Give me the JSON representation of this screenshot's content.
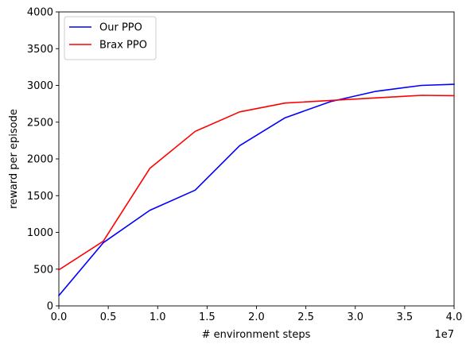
{
  "chart_data": {
    "type": "line",
    "xlabel": "# environment steps",
    "ylabel": "reward per episode",
    "x_offset_label": "1e7",
    "xlim": [
      0,
      4
    ],
    "ylim": [
      0,
      4000
    ],
    "x_ticks": [
      "0.0",
      "0.5",
      "1.0",
      "1.5",
      "2.0",
      "2.5",
      "3.0",
      "3.5",
      "4.0"
    ],
    "y_ticks": [
      "0",
      "500",
      "1000",
      "1500",
      "2000",
      "2500",
      "3000",
      "3500",
      "4000"
    ],
    "legend_position": "top-left",
    "grid": false,
    "series": [
      {
        "name": "Our PPO",
        "color": "#0000ff",
        "x": [
          0,
          0.45,
          0.92,
          1.38,
          1.83,
          2.29,
          2.75,
          3.21,
          3.67,
          4.0
        ],
        "y": [
          140,
          860,
          1300,
          1575,
          2180,
          2560,
          2780,
          2920,
          3000,
          3015
        ]
      },
      {
        "name": "Brax PPO",
        "color": "#ff0000",
        "x": [
          0,
          0.45,
          0.92,
          1.38,
          1.83,
          2.29,
          2.75,
          3.21,
          3.67,
          4.0
        ],
        "y": [
          490,
          880,
          1870,
          2375,
          2640,
          2760,
          2795,
          2830,
          2865,
          2860
        ]
      }
    ]
  }
}
